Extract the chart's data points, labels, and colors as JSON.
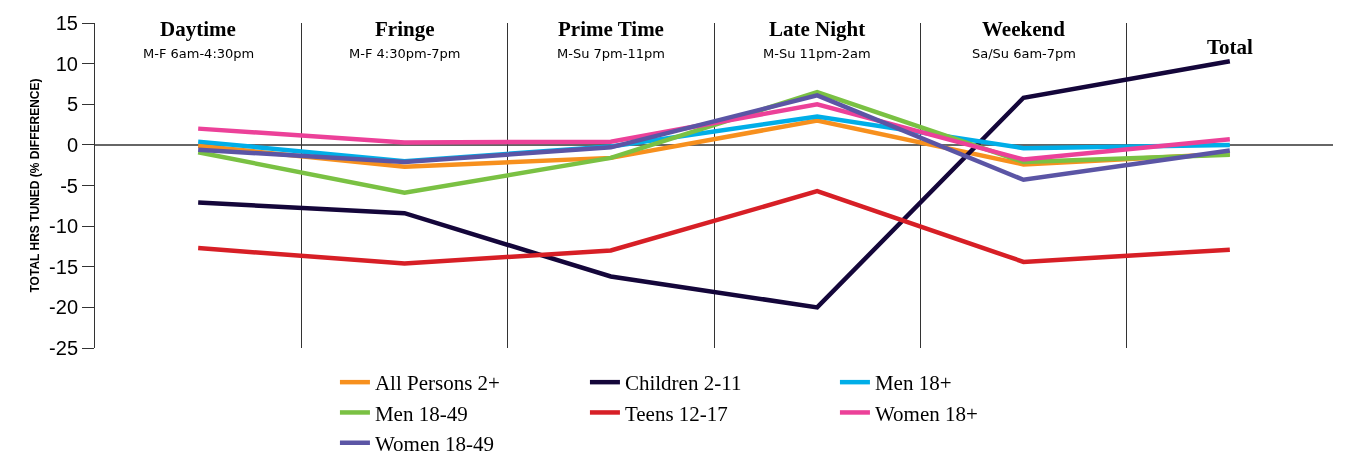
{
  "chart_data": {
    "type": "line",
    "ylabel": "TOTAL HRS TUNED (% DIFFERENCE)",
    "categories": [
      "Daytime",
      "Fringe",
      "Prime Time",
      "Late Night",
      "Weekend",
      "Total"
    ],
    "annotations": [
      "M-F 6am-4:30pm",
      "M-F 4:30pm-7pm",
      "M-Su 7pm-11pm",
      "M-Su 11pm-2am",
      "Sa/Su 6am-7pm"
    ],
    "ylim": [
      -25,
      15
    ],
    "yticks": [
      -25,
      -20,
      -15,
      -10,
      -5,
      0,
      5,
      10,
      15
    ],
    "grid": "x",
    "legend": "bottom right",
    "ref_lines": [
      {
        "axis": "y",
        "value": 0
      }
    ],
    "line_style": "solid",
    "marker": "none",
    "series": [
      {
        "name": "All Persons 2+",
        "color": "#f7901e",
        "values": [
          -0.1,
          -2.7,
          -1.6,
          3.0,
          -2.4,
          -1.1
        ]
      },
      {
        "name": "Children 2-11",
        "color": "#14063a",
        "values": [
          -7.1,
          -8.4,
          -16.2,
          -20.0,
          5.8,
          10.3
        ]
      },
      {
        "name": "Men 18+",
        "color": "#00aee8",
        "values": [
          0.4,
          -2.0,
          -0.2,
          3.5,
          -0.4,
          0.0
        ]
      },
      {
        "name": "Men 18-49",
        "color": "#7ac143",
        "values": [
          -0.9,
          -5.9,
          -1.6,
          6.5,
          -2.1,
          -1.2
        ]
      },
      {
        "name": "Teens 12-17",
        "color": "#d71f26",
        "values": [
          -12.7,
          -14.6,
          -13.0,
          -5.7,
          -14.4,
          -12.9
        ]
      },
      {
        "name": "Women 18+",
        "color": "#ec4199",
        "values": [
          2.0,
          0.3,
          0.4,
          5.0,
          -1.8,
          0.7
        ]
      },
      {
        "name": "Women 18-49",
        "color": "#5b55a5",
        "values": [
          -0.6,
          -2.1,
          -0.3,
          6.1,
          -4.3,
          -0.7
        ]
      }
    ]
  }
}
